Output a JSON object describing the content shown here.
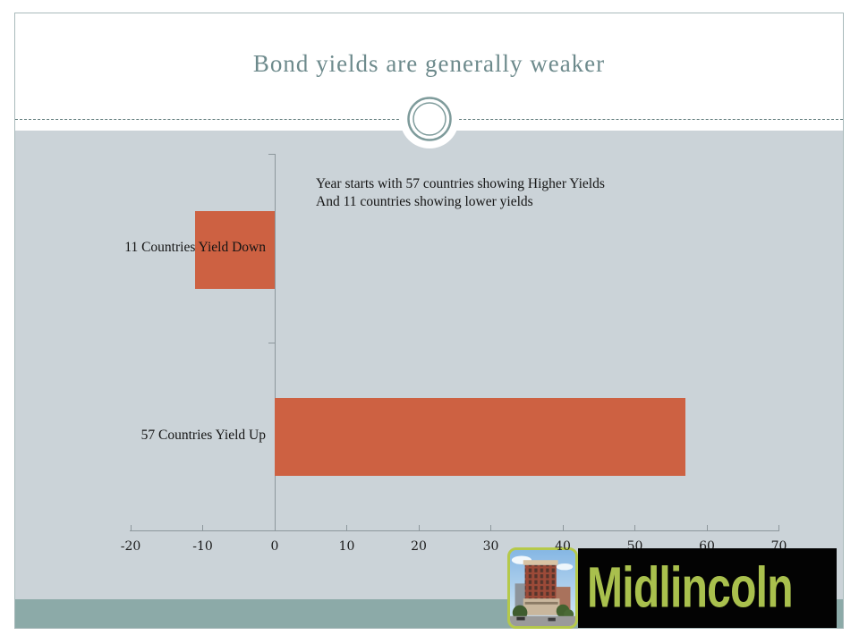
{
  "slide": {
    "title": "Bond yields are generally weaker"
  },
  "chart_data": {
    "type": "bar",
    "orientation": "horizontal",
    "categories": [
      "11 Countries Yield Down",
      "57 Countries  Yield Up"
    ],
    "values": [
      -11,
      57
    ],
    "x_ticks": [
      -20,
      -10,
      0,
      10,
      20,
      30,
      40,
      50,
      60,
      70
    ],
    "xlim": [
      -20,
      70
    ],
    "grid": false,
    "legend": "none",
    "bar_color": "#cd6142",
    "annotation_lines": [
      "Year starts with 57 countries showing Higher Yields",
      "And 11 countries showing lower yields"
    ]
  },
  "logo": {
    "text": "Midlincoln",
    "text_color": "#a9c04d",
    "background_color": "#030303",
    "image_name": "building-photo"
  },
  "colors": {
    "chart_background": "#cbd3d8",
    "bottom_band": "#8caaa8",
    "bar": "#cd6142",
    "title_text": "#6d8a8c",
    "accent_ring": "#7e9b9b",
    "axis": "#8d979c"
  }
}
